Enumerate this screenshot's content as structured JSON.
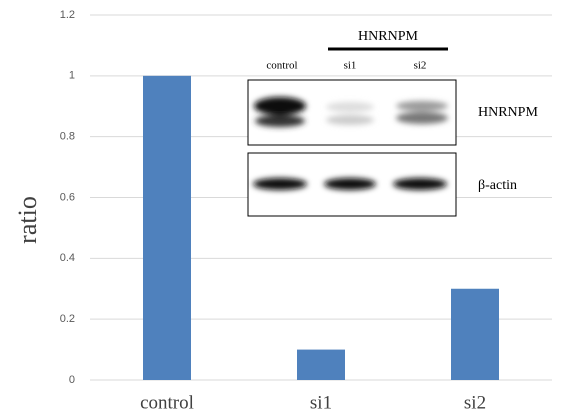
{
  "chart_data": {
    "type": "bar",
    "y_label": "ratio",
    "categories": [
      "control",
      "si1",
      "si2"
    ],
    "values": [
      1,
      0.1,
      0.3
    ],
    "color": "#4f81bd",
    "ylim": [
      0,
      1.2
    ],
    "yticks": [
      0,
      0.2,
      0.4,
      0.6,
      0.8,
      1,
      1.2
    ],
    "grid": true,
    "inset": {
      "title": "HNRNPM",
      "lanes": [
        "control",
        "si1",
        "si2"
      ],
      "bands": [
        "HNRNPM",
        "β-actin"
      ]
    }
  }
}
